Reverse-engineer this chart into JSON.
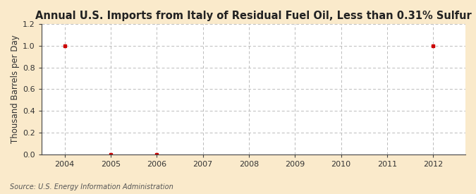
{
  "title": "Annual U.S. Imports from Italy of Residual Fuel Oil, Less than 0.31% Sulfur",
  "ylabel": "Thousand Barrels per Day",
  "source": "Source: U.S. Energy Information Administration",
  "years": [
    2004,
    2005,
    2006,
    2007,
    2008,
    2009,
    2010,
    2011,
    2012
  ],
  "values": [
    1.0,
    0.0,
    0.0,
    null,
    null,
    null,
    null,
    null,
    1.0
  ],
  "xlim": [
    2003.5,
    2012.7
  ],
  "ylim": [
    0.0,
    1.2
  ],
  "yticks": [
    0.0,
    0.2,
    0.4,
    0.6,
    0.8,
    1.0,
    1.2
  ],
  "xticks": [
    2004,
    2005,
    2006,
    2007,
    2008,
    2009,
    2010,
    2011,
    2012
  ],
  "data_color": "#cc0000",
  "grid_color": "#bbbbbb",
  "background_color": "#faeacb",
  "plot_bg_color": "#ffffff",
  "spine_color": "#444444",
  "title_fontsize": 10.5,
  "label_fontsize": 8.5,
  "tick_fontsize": 8,
  "source_fontsize": 7,
  "marker_size": 3.5
}
